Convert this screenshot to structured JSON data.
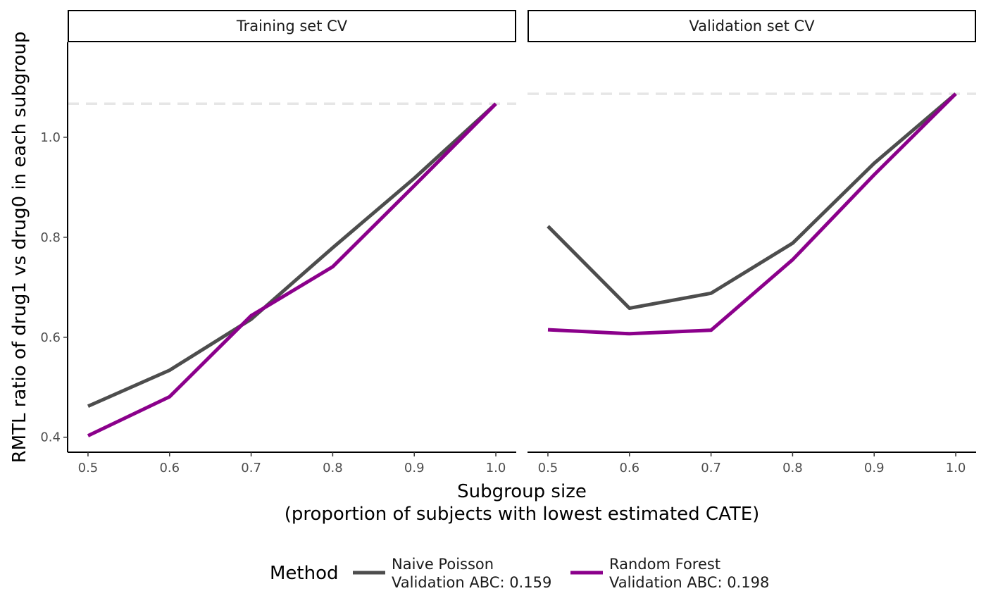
{
  "chart_data": {
    "type": "line",
    "xlabel_lines": [
      "Subgroup size",
      "(proportion of subjects with lowest estimated CATE)"
    ],
    "ylabel": "RMTL ratio of drug1 vs drug0 in each subgroup",
    "x_ticks": [
      "0.5",
      "0.6",
      "0.7",
      "0.8",
      "0.9",
      "1.0"
    ],
    "y_ticks": [
      "0.4",
      "0.6",
      "0.8",
      "1.0"
    ],
    "xlim": [
      0.475,
      1.025
    ],
    "ylim": [
      0.37,
      1.19
    ],
    "grid": false,
    "legend": {
      "title": "Method",
      "position": "bottom",
      "entries": [
        {
          "lines": [
            "Naive Poisson",
            "Validation ABC: 0.159"
          ],
          "color": "#4d4d4d"
        },
        {
          "lines": [
            "Random Forest",
            "Validation ABC: 0.198"
          ],
          "color": "#8b008b"
        }
      ]
    },
    "panels": [
      {
        "title": "Training set CV",
        "reference_y": 1.067,
        "series": [
          {
            "color": "#4d4d4d",
            "x": [
              0.5,
              0.6,
              0.7,
              0.8,
              0.9,
              1.0
            ],
            "y": [
              0.462,
              0.534,
              0.636,
              0.779,
              0.918,
              1.067
            ]
          },
          {
            "color": "#8b008b",
            "x": [
              0.5,
              0.6,
              0.7,
              0.8,
              0.9,
              1.0
            ],
            "y": [
              0.403,
              0.481,
              0.643,
              0.741,
              0.903,
              1.067
            ]
          }
        ]
      },
      {
        "title": "Validation set CV",
        "reference_y": 1.087,
        "series": [
          {
            "color": "#4d4d4d",
            "x": [
              0.5,
              0.6,
              0.7,
              0.8,
              0.9,
              1.0
            ],
            "y": [
              0.822,
              0.658,
              0.688,
              0.788,
              0.948,
              1.087
            ]
          },
          {
            "color": "#8b008b",
            "x": [
              0.5,
              0.6,
              0.7,
              0.8,
              0.9,
              1.0
            ],
            "y": [
              0.615,
              0.607,
              0.614,
              0.755,
              0.925,
              1.087
            ]
          }
        ]
      }
    ]
  }
}
